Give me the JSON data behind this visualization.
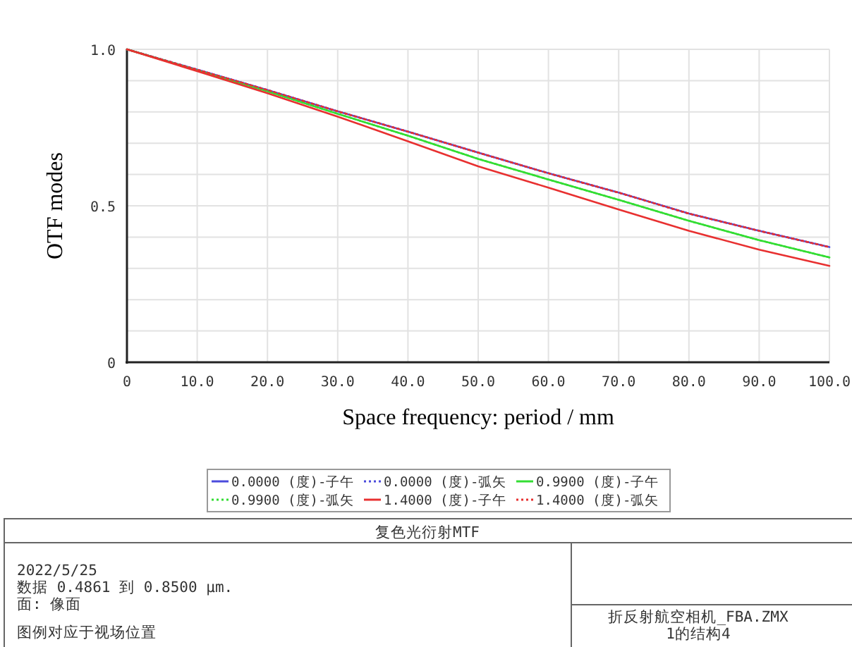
{
  "chart_data": {
    "type": "line",
    "ylabel": "OTF modes",
    "xlabel": "Space frequency: period / mm",
    "x": [
      0,
      10,
      20,
      30,
      40,
      50,
      60,
      70,
      80,
      90,
      100
    ],
    "xlim": [
      0,
      100
    ],
    "xticks": [
      {
        "value": 0,
        "label": "0"
      },
      {
        "value": 10,
        "label": "10.0"
      },
      {
        "value": 20,
        "label": "20.0"
      },
      {
        "value": 30,
        "label": "30.0"
      },
      {
        "value": 40,
        "label": "40.0"
      },
      {
        "value": 50,
        "label": "50.0"
      },
      {
        "value": 60,
        "label": "60.0"
      },
      {
        "value": 70,
        "label": "70.0"
      },
      {
        "value": 80,
        "label": "80.0"
      },
      {
        "value": 90,
        "label": "90.0"
      },
      {
        "value": 100,
        "label": "100.0"
      }
    ],
    "ylim": [
      0,
      1
    ],
    "yticks": [
      {
        "value": 0,
        "label": "0"
      },
      {
        "value": 0.1,
        "label": null
      },
      {
        "value": 0.2,
        "label": null
      },
      {
        "value": 0.3,
        "label": null
      },
      {
        "value": 0.4,
        "label": null
      },
      {
        "value": 0.5,
        "label": "0.5"
      },
      {
        "value": 0.6,
        "label": null
      },
      {
        "value": 0.7,
        "label": null
      },
      {
        "value": 0.8,
        "label": null
      },
      {
        "value": 0.9,
        "label": null
      },
      {
        "value": 1,
        "label": "1.0"
      }
    ],
    "grid": true,
    "legend": "bottom",
    "series": [
      {
        "name": "0.0000 (度)-子午",
        "color": "#4b4bdc",
        "line_style": "solid",
        "values": [
          1,
          0.935,
          0.87,
          0.802,
          0.737,
          0.67,
          0.604,
          0.542,
          0.475,
          0.42,
          0.368
        ]
      },
      {
        "name": "0.0000 (度)-弧矢",
        "color": "#4b4bdc",
        "line_style": "dotted",
        "values": [
          1,
          0.935,
          0.87,
          0.802,
          0.737,
          0.67,
          0.604,
          0.542,
          0.475,
          0.42,
          0.368
        ]
      },
      {
        "name": "0.9900 (度)-子午",
        "color": "#33dd33",
        "line_style": "solid",
        "values": [
          1,
          0.933,
          0.866,
          0.794,
          0.724,
          0.65,
          0.584,
          0.519,
          0.452,
          0.39,
          0.335
        ]
      },
      {
        "name": "0.9900 (度)-弧矢",
        "color": "#33dd33",
        "line_style": "dotted",
        "values": [
          1,
          0.933,
          0.866,
          0.794,
          0.724,
          0.65,
          0.584,
          0.519,
          0.452,
          0.39,
          0.335
        ]
      },
      {
        "name": "1.4000 (度)-子午",
        "color": "#e83030",
        "line_style": "solid",
        "values": [
          1,
          0.93,
          0.86,
          0.785,
          0.706,
          0.626,
          0.558,
          0.488,
          0.42,
          0.36,
          0.308
        ]
      },
      {
        "name": "1.4000 (度)-弧矢",
        "color": "#e83030",
        "line_style": "dotted",
        "values": [
          1,
          0.935,
          0.87,
          0.802,
          0.737,
          0.67,
          0.604,
          0.542,
          0.475,
          0.42,
          0.368
        ]
      }
    ],
    "annotations": [
      "复色光衍射MTF",
      "2022/5/25",
      "数据 0.4861 到 0.8500 µm.",
      "面: 像面",
      "图例对应于视场位置",
      "折反射航空相机_FBA.ZMX",
      "1的结构4"
    ]
  }
}
